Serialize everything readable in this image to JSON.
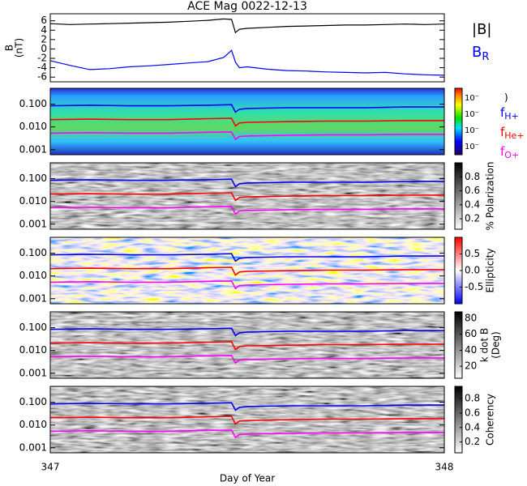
{
  "chart_data": [
    {
      "type": "line",
      "title": "ACE Mag 0022-12-13",
      "ylabel": "B",
      "ylabel_units": "(nT)",
      "xlim": [
        347,
        348
      ],
      "ylim": [
        -7,
        7.5
      ],
      "yticks": [
        -6,
        -4,
        -2,
        0,
        2,
        4,
        6
      ],
      "x": [
        347,
        347.05,
        347.1,
        347.15,
        347.2,
        347.25,
        347.3,
        347.35,
        347.4,
        347.44,
        347.46,
        347.47,
        347.48,
        347.5,
        347.55,
        347.6,
        347.65,
        347.7,
        347.75,
        347.8,
        347.85,
        347.9,
        347.95,
        348
      ],
      "series": [
        {
          "name": "|B|",
          "color": "#000000",
          "values": [
            5.4,
            5.2,
            5.3,
            5.4,
            5.5,
            5.6,
            5.7,
            5.9,
            6.1,
            6.4,
            6.3,
            3.5,
            4.2,
            4.4,
            4.6,
            4.8,
            4.9,
            5.0,
            5.1,
            5.1,
            5.2,
            5.3,
            5.2,
            5.3
          ]
        },
        {
          "name": "B",
          "subscript": "R",
          "color": "#0000ff",
          "values": [
            -2.5,
            -3.5,
            -4.4,
            -4.2,
            -3.8,
            -3.6,
            -3.3,
            -3.0,
            -2.7,
            -1.8,
            -0.3,
            -2.8,
            -4.0,
            -3.8,
            -4.3,
            -4.6,
            -4.7,
            -4.9,
            -5.0,
            -5.1,
            -5.0,
            -5.3,
            -5.5,
            -5.6
          ]
        }
      ]
    },
    {
      "type": "spectrogram",
      "colormap": "rainbow",
      "colorbar_title": ")",
      "colorbar_labels": [
        "10⁻",
        "10⁻",
        "10⁻",
        "10⁻"
      ],
      "xlim": [
        347,
        348
      ],
      "ylim": [
        0.0006,
        0.5
      ],
      "log_scale": true,
      "yticks": [
        0.001,
        {
          "value": 0.01,
          "label": "0.010"
        },
        {
          "value": 0.1,
          "label": "0.100"
        }
      ],
      "x": [
        347,
        347.1,
        347.2,
        347.3,
        347.4,
        347.46,
        347.47,
        347.48,
        347.5,
        347.6,
        347.7,
        347.8,
        347.9,
        348
      ],
      "series": [
        {
          "name": "f",
          "subscript": "H+",
          "color": "#0000ff",
          "values": [
            0.085,
            0.09,
            0.085,
            0.085,
            0.09,
            0.095,
            0.045,
            0.06,
            0.065,
            0.07,
            0.07,
            0.07,
            0.075,
            0.075
          ]
        },
        {
          "name": "f",
          "subscript": "He+",
          "color": "#ff0000",
          "values": [
            0.021,
            0.022,
            0.021,
            0.021,
            0.023,
            0.024,
            0.011,
            0.015,
            0.016,
            0.017,
            0.018,
            0.018,
            0.019,
            0.019
          ]
        },
        {
          "name": "f",
          "subscript": "O+",
          "color": "#ff00ff",
          "values": [
            0.0053,
            0.0056,
            0.0053,
            0.0053,
            0.0058,
            0.006,
            0.0028,
            0.0038,
            0.004,
            0.0043,
            0.0045,
            0.0045,
            0.0047,
            0.0047
          ]
        }
      ]
    },
    {
      "type": "spectrogram",
      "colormap": "gray",
      "colorbar_title": "% Polarization",
      "clim": [
        0.05,
        1
      ],
      "cticks": [
        0.2,
        0.4,
        0.6,
        0.8
      ],
      "xlim": [
        347,
        348
      ],
      "ylim": [
        0.0006,
        0.5
      ],
      "log_scale": true,
      "yticks": [
        0.001,
        {
          "value": 0.01,
          "label": "0.010"
        },
        {
          "value": 0.1,
          "label": "0.100"
        }
      ],
      "x": [
        347,
        347.1,
        347.2,
        347.3,
        347.4,
        347.46,
        347.47,
        347.48,
        347.5,
        347.6,
        347.7,
        347.8,
        347.9,
        348
      ],
      "series": [
        {
          "color": "#0000ff",
          "values": [
            0.085,
            0.09,
            0.085,
            0.085,
            0.09,
            0.095,
            0.045,
            0.06,
            0.065,
            0.07,
            0.07,
            0.07,
            0.075,
            0.075
          ]
        },
        {
          "color": "#ff0000",
          "values": [
            0.021,
            0.022,
            0.021,
            0.021,
            0.023,
            0.024,
            0.011,
            0.015,
            0.016,
            0.017,
            0.018,
            0.018,
            0.019,
            0.019
          ]
        },
        {
          "color": "#ff00ff",
          "values": [
            0.0053,
            0.0056,
            0.0053,
            0.0053,
            0.0058,
            0.006,
            0.0028,
            0.0038,
            0.004,
            0.0043,
            0.0045,
            0.0045,
            0.0047,
            0.0047
          ]
        }
      ]
    },
    {
      "type": "spectrogram",
      "colormap": "bwr",
      "colorbar_title": "Ellipticity",
      "clim": [
        -1,
        1
      ],
      "cticks": [
        -0.5,
        {
          "value": 0,
          "label": "0.0"
        },
        0.5
      ],
      "xlim": [
        347,
        348
      ],
      "ylim": [
        0.0006,
        0.5
      ],
      "log_scale": true,
      "yticks": [
        0.001,
        {
          "value": 0.01,
          "label": "0.010"
        },
        {
          "value": 0.1,
          "label": "0.100"
        }
      ],
      "x": [
        347,
        347.1,
        347.2,
        347.3,
        347.4,
        347.46,
        347.47,
        347.48,
        347.5,
        347.6,
        347.7,
        347.8,
        347.9,
        348
      ],
      "series": [
        {
          "color": "#0000ff",
          "values": [
            0.085,
            0.09,
            0.085,
            0.085,
            0.09,
            0.095,
            0.045,
            0.06,
            0.065,
            0.07,
            0.07,
            0.07,
            0.075,
            0.075
          ]
        },
        {
          "color": "#ff0000",
          "values": [
            0.021,
            0.022,
            0.021,
            0.021,
            0.023,
            0.024,
            0.011,
            0.015,
            0.016,
            0.017,
            0.018,
            0.018,
            0.019,
            0.019
          ]
        },
        {
          "color": "#ff00ff",
          "values": [
            0.0053,
            0.0056,
            0.0053,
            0.0053,
            0.0058,
            0.006,
            0.0028,
            0.0038,
            0.004,
            0.0043,
            0.0045,
            0.0045,
            0.0047,
            0.0047
          ]
        }
      ]
    },
    {
      "type": "spectrogram",
      "colormap": "gray",
      "colorbar_title": "k dot B",
      "colorbar_units": "(Deg)",
      "clim": [
        5,
        88
      ],
      "cticks": [
        20,
        40,
        60,
        80
      ],
      "xlim": [
        347,
        348
      ],
      "ylim": [
        0.0006,
        0.5
      ],
      "log_scale": true,
      "yticks": [
        0.001,
        {
          "value": 0.01,
          "label": "0.010"
        },
        {
          "value": 0.1,
          "label": "0.100"
        }
      ],
      "x": [
        347,
        347.1,
        347.2,
        347.3,
        347.4,
        347.46,
        347.47,
        347.48,
        347.5,
        347.6,
        347.7,
        347.8,
        347.9,
        348
      ],
      "series": [
        {
          "color": "#0000ff",
          "values": [
            0.085,
            0.09,
            0.085,
            0.085,
            0.09,
            0.095,
            0.045,
            0.06,
            0.065,
            0.07,
            0.07,
            0.07,
            0.075,
            0.075
          ]
        },
        {
          "color": "#ff0000",
          "values": [
            0.021,
            0.022,
            0.021,
            0.021,
            0.023,
            0.024,
            0.011,
            0.015,
            0.016,
            0.017,
            0.018,
            0.018,
            0.019,
            0.019
          ]
        },
        {
          "color": "#ff00ff",
          "values": [
            0.0053,
            0.0056,
            0.0053,
            0.0053,
            0.0058,
            0.006,
            0.0028,
            0.0038,
            0.004,
            0.0043,
            0.0045,
            0.0045,
            0.0047,
            0.0047
          ]
        }
      ]
    },
    {
      "type": "spectrogram",
      "colormap": "gray",
      "colorbar_title": "Coherency",
      "clim": [
        0.05,
        0.97
      ],
      "cticks": [
        0.2,
        0.4,
        0.6,
        0.8
      ],
      "xlim": [
        347,
        348
      ],
      "ylim": [
        0.0006,
        0.5
      ],
      "log_scale": true,
      "xlabel": "Day of Year",
      "xticks": [
        347,
        348
      ],
      "yticks": [
        0.001,
        {
          "value": 0.01,
          "label": "0.010"
        },
        {
          "value": 0.1,
          "label": "0.100"
        }
      ],
      "x": [
        347,
        347.1,
        347.2,
        347.3,
        347.4,
        347.46,
        347.47,
        347.48,
        347.5,
        347.6,
        347.7,
        347.8,
        347.9,
        348
      ],
      "series": [
        {
          "color": "#0000ff",
          "values": [
            0.085,
            0.09,
            0.085,
            0.085,
            0.09,
            0.095,
            0.045,
            0.06,
            0.065,
            0.07,
            0.07,
            0.07,
            0.075,
            0.075
          ]
        },
        {
          "color": "#ff0000",
          "values": [
            0.021,
            0.022,
            0.021,
            0.021,
            0.023,
            0.024,
            0.011,
            0.015,
            0.016,
            0.017,
            0.018,
            0.018,
            0.019,
            0.019
          ]
        },
        {
          "color": "#ff00ff",
          "values": [
            0.0053,
            0.0056,
            0.0053,
            0.0053,
            0.0058,
            0.006,
            0.0028,
            0.0038,
            0.004,
            0.0043,
            0.0045,
            0.0045,
            0.0047,
            0.0047
          ]
        }
      ]
    }
  ]
}
